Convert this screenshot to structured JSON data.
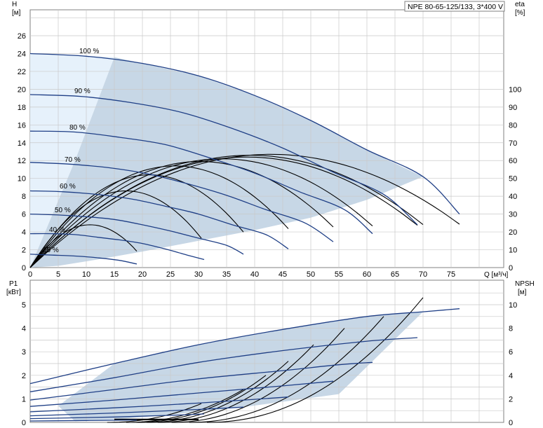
{
  "chart_title": "NPE 80-65-125/133, 3*400 V",
  "chart_data": [
    {
      "type": "line",
      "xlabel": "Q [м³/ч]",
      "ylabel": "H",
      "ylabel_unit": "[м]",
      "y2label": "eta",
      "y2label_unit": "[%]",
      "xlim": [
        0,
        80
      ],
      "ylim": [
        0,
        28
      ],
      "y2lim": [
        0,
        140
      ],
      "xticks": [
        "0",
        "5",
        "10",
        "15",
        "20",
        "25",
        "30",
        "35",
        "40",
        "45",
        "50",
        "55",
        "60",
        "65",
        "70",
        "75"
      ],
      "yticks": [
        "0",
        "2",
        "4",
        "6",
        "8",
        "10",
        "12",
        "14",
        "16",
        "18",
        "20",
        "22",
        "24",
        "26"
      ],
      "y2ticks": [
        "0",
        "10",
        "20",
        "30",
        "40",
        "50",
        "60",
        "70",
        "80",
        "90",
        "100"
      ],
      "grid": true,
      "speed_labels": [
        "100 %",
        "90 %",
        "80 %",
        "70 %",
        "60 %",
        "50 %",
        "40 %",
        "25 %"
      ],
      "head_curves": [
        {
          "name": "100 %",
          "x": [
            0,
            10,
            20,
            30,
            40,
            50,
            60,
            70,
            76.5
          ],
          "y": [
            24,
            23.7,
            22.9,
            21.5,
            19.3,
            16.5,
            13.2,
            10.2,
            6.0
          ]
        },
        {
          "name": "90 %",
          "x": [
            0,
            9,
            18,
            27,
            36,
            45,
            54,
            63,
            69
          ],
          "y": [
            19.4,
            19.2,
            18.5,
            17.4,
            15.6,
            13.4,
            10.7,
            8.2,
            4.8
          ]
        },
        {
          "name": "80 %",
          "x": [
            0,
            8,
            16,
            24,
            32,
            40,
            48,
            56,
            61
          ],
          "y": [
            15.3,
            15.2,
            14.6,
            13.8,
            12.3,
            10.6,
            8.5,
            6.5,
            3.8
          ]
        },
        {
          "name": "70 %",
          "x": [
            0,
            7,
            14,
            21,
            28,
            35,
            42,
            49,
            54
          ],
          "y": [
            11.8,
            11.6,
            11.2,
            10.5,
            9.4,
            8.1,
            6.5,
            5.0,
            2.9
          ]
        },
        {
          "name": "60 %",
          "x": [
            0,
            6,
            12,
            18,
            24,
            30,
            36,
            42,
            46
          ],
          "y": [
            8.6,
            8.5,
            8.2,
            7.7,
            6.9,
            6.0,
            4.8,
            3.7,
            2.1
          ]
        },
        {
          "name": "50 %",
          "x": [
            0,
            5,
            10,
            15,
            20,
            25,
            30,
            35,
            38
          ],
          "y": [
            6.0,
            5.9,
            5.7,
            5.4,
            4.8,
            4.1,
            3.3,
            2.5,
            1.5
          ]
        },
        {
          "name": "40 %",
          "x": [
            0,
            4,
            8,
            12,
            16,
            20,
            24,
            28,
            31
          ],
          "y": [
            3.8,
            3.8,
            3.7,
            3.4,
            3.1,
            2.7,
            2.1,
            1.4,
            0.9
          ]
        },
        {
          "name": "25 %",
          "x": [
            0,
            4,
            8,
            12,
            16,
            19
          ],
          "y": [
            1.5,
            1.4,
            1.3,
            1.1,
            0.8,
            0.4
          ]
        }
      ],
      "eta_curves_peak_pct": [
        24,
        43,
        52,
        57,
        59.5,
        61,
        62,
        63,
        63.5
      ]
    },
    {
      "type": "line",
      "ylabel": "P1",
      "ylabel_unit": "[кВт]",
      "y2label": "NPSH",
      "y2label_unit": "[м]",
      "xlim": [
        0,
        80
      ],
      "ylim": [
        0,
        5.5
      ],
      "y2lim": [
        0,
        11
      ],
      "yticks": [
        "0",
        "1",
        "2",
        "3",
        "4",
        "5"
      ],
      "y2ticks": [
        "0",
        "2",
        "4",
        "6",
        "8",
        "10"
      ],
      "grid": true,
      "power_curves": [
        {
          "name": "100 %",
          "x": [
            0,
            15,
            30,
            45,
            60,
            70,
            76.5
          ],
          "y": [
            1.65,
            2.5,
            3.3,
            3.95,
            4.5,
            4.7,
            4.83
          ]
        },
        {
          "name": "90 %",
          "x": [
            0,
            15,
            30,
            45,
            60,
            69
          ],
          "y": [
            1.3,
            1.9,
            2.55,
            3.05,
            3.45,
            3.6
          ]
        },
        {
          "name": "80 %",
          "x": [
            0,
            15,
            30,
            45,
            55,
            61
          ],
          "y": [
            0.95,
            1.4,
            1.85,
            2.2,
            2.45,
            2.55
          ]
        },
        {
          "name": "70 %",
          "x": [
            0,
            15,
            30,
            45,
            54
          ],
          "y": [
            0.68,
            0.95,
            1.25,
            1.55,
            1.75
          ]
        },
        {
          "name": "60 %",
          "x": [
            0,
            15,
            30,
            40,
            46
          ],
          "y": [
            0.45,
            0.62,
            0.82,
            0.98,
            1.08
          ]
        },
        {
          "name": "50 %",
          "x": [
            0,
            15,
            30,
            38
          ],
          "y": [
            0.28,
            0.4,
            0.55,
            0.65
          ]
        },
        {
          "name": "40 %",
          "x": [
            0,
            15,
            25,
            31
          ],
          "y": [
            0.16,
            0.23,
            0.3,
            0.36
          ]
        },
        {
          "name": "25 %",
          "x": [
            0,
            10,
            19
          ],
          "y": [
            0.06,
            0.08,
            0.1
          ]
        }
      ],
      "npsh_curves_end": [
        {
          "x": 30.5,
          "y": 0.8
        },
        {
          "x": 38,
          "y": 1.4
        },
        {
          "x": 42,
          "y": 2.0
        },
        {
          "x": 46,
          "y": 2.6
        },
        {
          "x": 50.5,
          "y": 3.3
        },
        {
          "x": 56,
          "y": 4.0
        },
        {
          "x": 63,
          "y": 4.5
        },
        {
          "x": 70,
          "y": 5.3
        }
      ]
    }
  ],
  "colors": {
    "curve_blue": "#1f3f86",
    "area_light": "#e6f1fb",
    "area_blue": "#c7d7e6",
    "grid": "#c9c9c9",
    "frame": "#808080"
  }
}
